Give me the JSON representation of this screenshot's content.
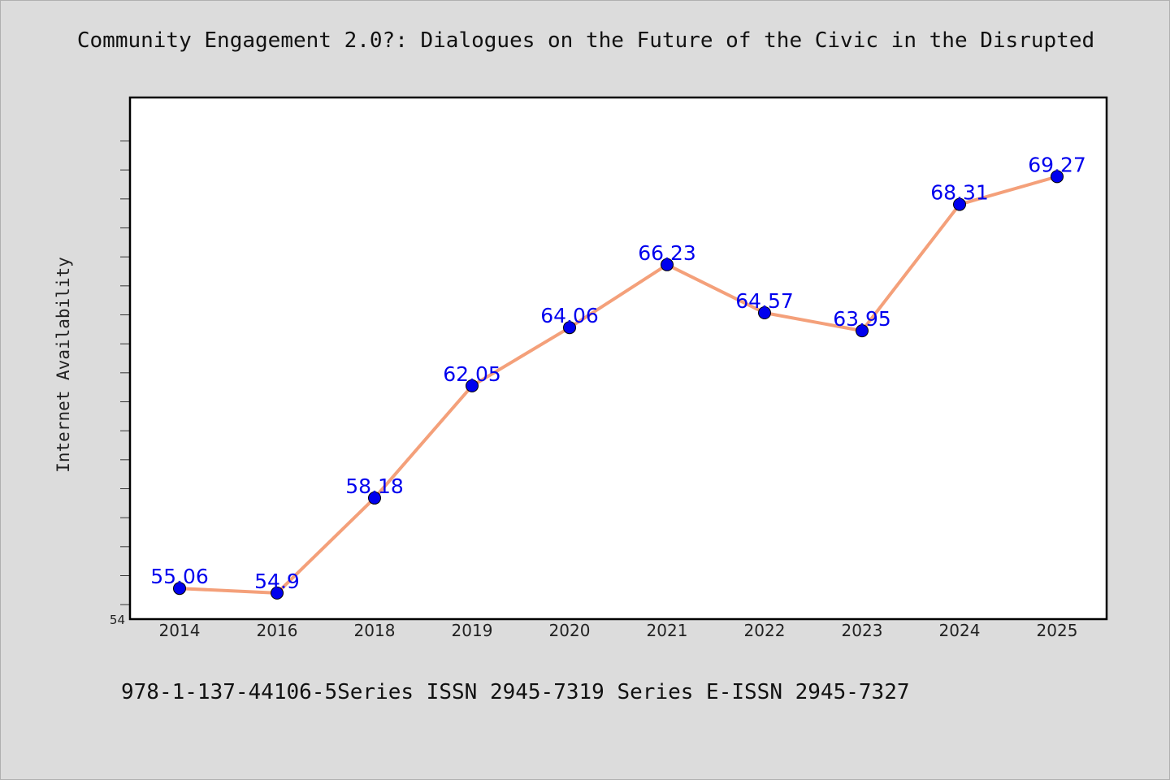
{
  "chart_data": {
    "type": "line",
    "title": "Community Engagement 2.0?: Dialogues on the Future of the Civic in the Disrupted",
    "xlabel": "",
    "ylabel": "Internet Availability",
    "categories": [
      "2014",
      "2016",
      "2018",
      "2019",
      "2020",
      "2021",
      "2022",
      "2023",
      "2024",
      "2025"
    ],
    "series": [
      {
        "values": [
          55.06,
          54.9,
          58.18,
          62.05,
          64.06,
          66.23,
          64.57,
          63.95,
          68.31,
          69.27
        ],
        "data_labels": [
          "55.06",
          "54.9",
          "58.18",
          "62.05",
          "64.06",
          "66.23",
          "64.57",
          "63.95",
          "68.31",
          "69.27"
        ]
      }
    ],
    "ylim": [
      54,
      72
    ],
    "ytick_labels": [
      "54"
    ],
    "grid": false,
    "legend": "none",
    "colors": {
      "line": "#f4a07a",
      "marker": "#0000ee",
      "data_label": "#0000ee",
      "plot_background": "#ffffff",
      "page_background": "#dcdcdc"
    }
  },
  "footer": {
    "text": "978-1-137-44106-5Series ISSN 2945-7319 Series E-ISSN 2945-7327"
  }
}
